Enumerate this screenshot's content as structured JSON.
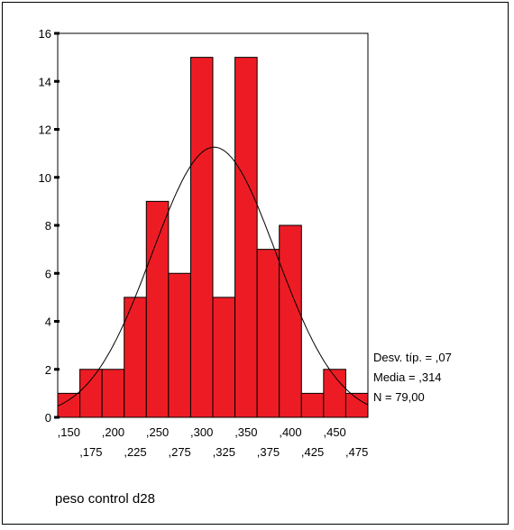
{
  "chart_data": {
    "type": "bar",
    "xlabel": "peso control d28",
    "ylim": [
      0,
      16
    ],
    "y_ticks": [
      "0",
      "2",
      "4",
      "6",
      "8",
      "10",
      "12",
      "14",
      "16"
    ],
    "x_ticks_row1": [
      ",150",
      ",200",
      ",250",
      ",300",
      ",350",
      ",400",
      ",450"
    ],
    "x_ticks_row2": [
      ",175",
      ",225",
      ",275",
      ",325",
      ",375",
      ",425",
      ",475"
    ],
    "categories": [
      ",150",
      ",175",
      ",200",
      ",225",
      ",250",
      ",275",
      ",300",
      ",325",
      ",350",
      ",375",
      ",400",
      ",425",
      ",450",
      ",475"
    ],
    "bin_centers": [
      0.15,
      0.175,
      0.2,
      0.225,
      0.25,
      0.275,
      0.3,
      0.325,
      0.35,
      0.375,
      0.4,
      0.425,
      0.45,
      0.475
    ],
    "values": [
      1,
      2,
      2,
      5,
      9,
      6,
      15,
      5,
      15,
      7,
      8,
      1,
      2,
      1
    ],
    "bar_color": "#ed1c24",
    "normal_curve": {
      "mean": 0.314,
      "sd": 0.07,
      "n": 79.0,
      "bin_width": 0.025
    },
    "stats": {
      "sd_label": "Desv. típ. = ,07",
      "mean_label": "Media = ,314",
      "n_label": "N = 79,00"
    }
  }
}
